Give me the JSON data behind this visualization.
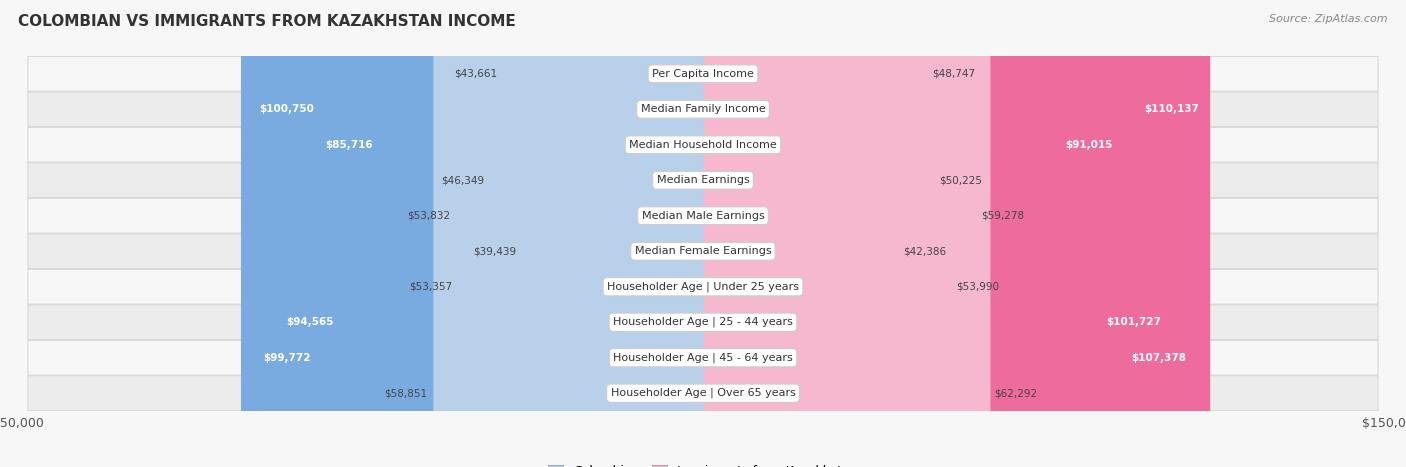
{
  "title": "COLOMBIAN VS IMMIGRANTS FROM KAZAKHSTAN INCOME",
  "source": "Source: ZipAtlas.com",
  "categories": [
    "Per Capita Income",
    "Median Family Income",
    "Median Household Income",
    "Median Earnings",
    "Median Male Earnings",
    "Median Female Earnings",
    "Householder Age | Under 25 years",
    "Householder Age | 25 - 44 years",
    "Householder Age | 45 - 64 years",
    "Householder Age | Over 65 years"
  ],
  "colombian_values": [
    43661,
    100750,
    85716,
    46349,
    53832,
    39439,
    53357,
    94565,
    99772,
    58851
  ],
  "kazakhstan_values": [
    48747,
    110137,
    91015,
    50225,
    59278,
    42386,
    53990,
    101727,
    107378,
    62292
  ],
  "colombian_labels": [
    "$43,661",
    "$100,750",
    "$85,716",
    "$46,349",
    "$53,832",
    "$39,439",
    "$53,357",
    "$94,565",
    "$99,772",
    "$58,851"
  ],
  "kazakhstan_labels": [
    "$48,747",
    "$110,137",
    "$91,015",
    "$50,225",
    "$59,278",
    "$42,386",
    "$53,990",
    "$101,727",
    "$107,378",
    "$62,292"
  ],
  "max_value": 150000,
  "colombian_color_light": "#b8d0ea",
  "colombian_color_dark": "#7aabe0",
  "kazakhstan_color_light": "#f5b8ce",
  "kazakhstan_color_dark": "#ee6b9e",
  "bar_height": 0.52,
  "fig_bg": "#f7f7f7",
  "row_bg_light": "#f7f7f7",
  "row_bg_dark": "#ececec",
  "row_border": "#d8d8d8",
  "label_dark": "#444444",
  "label_white": "#ffffff",
  "white_label_threshold": 65000,
  "legend_col_label": "Colombian",
  "legend_kaz_label": "Immigrants from Kazakhstan"
}
